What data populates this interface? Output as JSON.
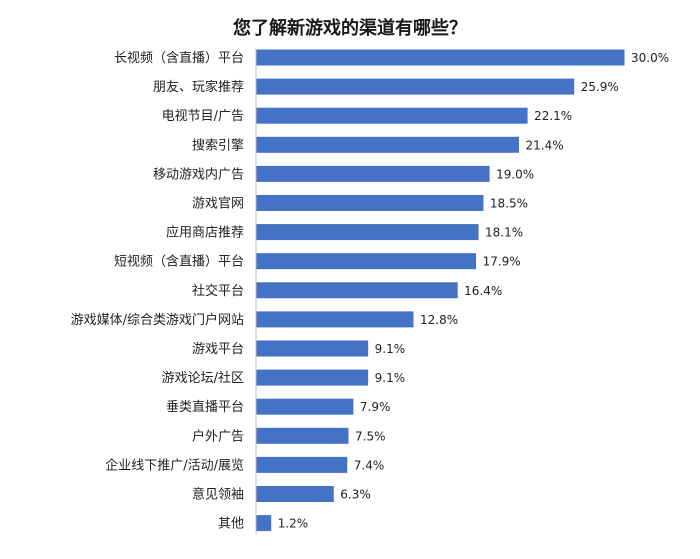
{
  "chart_data": {
    "type": "bar",
    "orientation": "horizontal",
    "title": "您了解新游戏的渠道有哪些？",
    "categories": [
      "长视频（含直播）平台",
      "朋友、玩家推荐",
      "电视节目/广告",
      "搜索引擎",
      "移动游戏内广告",
      "游戏官网",
      "应用商店推荐",
      "短视频（含直播）平台",
      "社交平台",
      "游戏媒体/综合类游戏门户网站",
      "游戏平台",
      "游戏论坛/社区",
      "垂类直播平台",
      "户外广告",
      "企业线下推广/活动/展览",
      "意见领袖",
      "其他"
    ],
    "values": [
      30.0,
      25.9,
      22.1,
      21.4,
      19.0,
      18.5,
      18.1,
      17.9,
      16.4,
      12.8,
      9.1,
      9.1,
      7.9,
      7.5,
      7.4,
      6.3,
      1.2
    ],
    "value_labels": [
      "30.0%",
      "25.9%",
      "22.1%",
      "21.4%",
      "19.0%",
      "18.5%",
      "18.1%",
      "17.9%",
      "16.4%",
      "12.8%",
      "9.1%",
      "9.1%",
      "7.9%",
      "7.5%",
      "7.4%",
      "6.3%",
      "1.2%"
    ],
    "xlim": [
      0,
      30
    ],
    "grid": false,
    "bar_color": "#4472c4",
    "axis_color": "#bfbfbf"
  }
}
